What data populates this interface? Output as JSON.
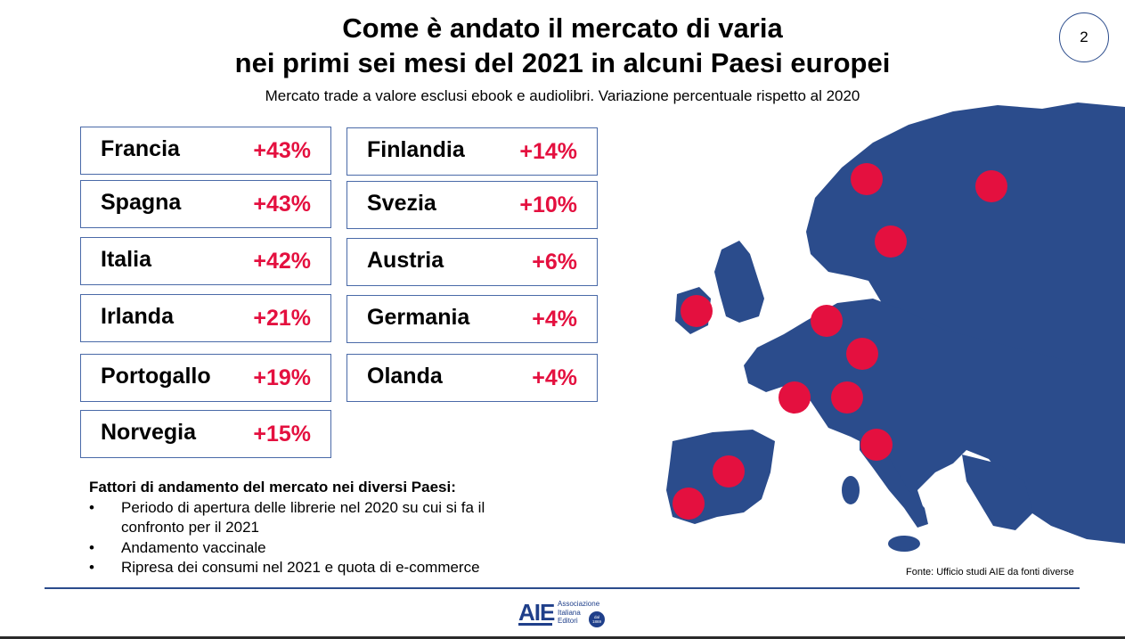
{
  "title_line1": "Come è andato il mercato di varia",
  "title_line2": "nei primi sei mesi del 2021 in alcuni Paesi europei",
  "subtitle": "Mercato trade a valore esclusi ebook e audiolibri. Variazione percentuale rispetto al 2020",
  "page_number": "2",
  "countries": [
    {
      "name": "Francia",
      "change": "+43%"
    },
    {
      "name": "Spagna",
      "change": "+43%"
    },
    {
      "name": "Italia",
      "change": "+42%"
    },
    {
      "name": "Irlanda",
      "change": "+21%"
    },
    {
      "name": "Portogallo",
      "change": "+19%"
    },
    {
      "name": "Norvegia",
      "change": "+15%"
    },
    {
      "name": "Finlandia",
      "change": "+14%"
    },
    {
      "name": "Svezia",
      "change": "+10%"
    },
    {
      "name": "Austria",
      "change": "+6%"
    },
    {
      "name": "Germania",
      "change": "+4%"
    },
    {
      "name": "Olanda",
      "change": "+4%"
    }
  ],
  "factors": {
    "heading": "Fattori di andamento del mercato nei diversi Paesi:",
    "items": [
      "Periodo di apertura delle librerie nel 2020 su cui si fa il confronto per il 2021",
      "Andamento vaccinale",
      "Ripresa dei consumi nel 2021 e quota di e-commerce"
    ]
  },
  "source": "Fonte: Ufficio studi AIE da fonti diverse",
  "logo": {
    "letters": "AIE",
    "line1": "Associazione",
    "line2": "Italiana",
    "line3": "Editori",
    "badge_top": "dal",
    "badge_year": "1869"
  },
  "colors": {
    "map_land": "#2b4c8c",
    "marker": "#e4103f",
    "box_border": "#4a6aa8"
  }
}
